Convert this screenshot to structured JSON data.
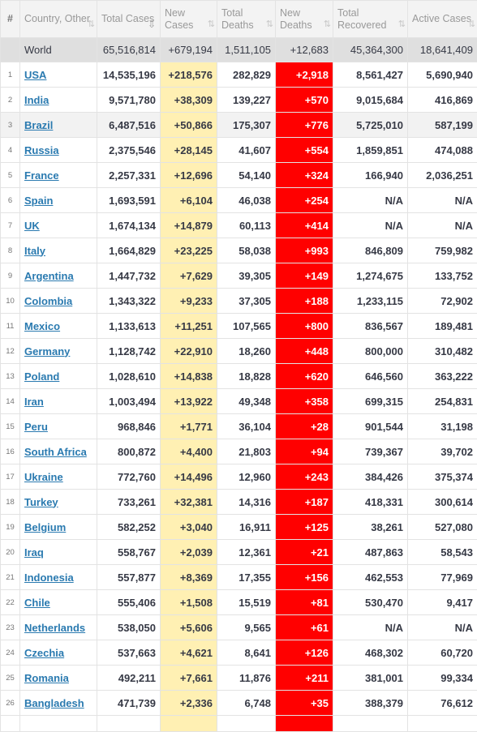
{
  "headers": [
    {
      "label": "#",
      "sort": ""
    },
    {
      "label": "Country, Other",
      "sort": "⇅"
    },
    {
      "label": "Total Cases",
      "sort": "⇩"
    },
    {
      "label": "New Cases",
      "sort": "⇅"
    },
    {
      "label": "Total Deaths",
      "sort": "⇅"
    },
    {
      "label": "New Deaths",
      "sort": "⇅"
    },
    {
      "label": "Total Recovered",
      "sort": "⇅"
    },
    {
      "label": "Active Cases",
      "sort": "⇅"
    }
  ],
  "world": {
    "country": "World",
    "total_cases": "65,516,814",
    "new_cases": "+679,194",
    "total_deaths": "1,511,105",
    "new_deaths": "+12,683",
    "total_recovered": "45,364,300",
    "active_cases": "18,641,409"
  },
  "rows": [
    {
      "num": "1",
      "country": "USA",
      "total_cases": "14,535,196",
      "new_cases": "+218,576",
      "total_deaths": "282,829",
      "new_deaths": "+2,918",
      "total_recovered": "8,561,427",
      "active_cases": "5,690,940"
    },
    {
      "num": "2",
      "country": "India",
      "total_cases": "9,571,780",
      "new_cases": "+38,309",
      "total_deaths": "139,227",
      "new_deaths": "+570",
      "total_recovered": "9,015,684",
      "active_cases": "416,869"
    },
    {
      "num": "3",
      "country": "Brazil",
      "total_cases": "6,487,516",
      "new_cases": "+50,866",
      "total_deaths": "175,307",
      "new_deaths": "+776",
      "total_recovered": "5,725,010",
      "active_cases": "587,199"
    },
    {
      "num": "4",
      "country": "Russia",
      "total_cases": "2,375,546",
      "new_cases": "+28,145",
      "total_deaths": "41,607",
      "new_deaths": "+554",
      "total_recovered": "1,859,851",
      "active_cases": "474,088"
    },
    {
      "num": "5",
      "country": "France",
      "total_cases": "2,257,331",
      "new_cases": "+12,696",
      "total_deaths": "54,140",
      "new_deaths": "+324",
      "total_recovered": "166,940",
      "active_cases": "2,036,251"
    },
    {
      "num": "6",
      "country": "Spain",
      "total_cases": "1,693,591",
      "new_cases": "+6,104",
      "total_deaths": "46,038",
      "new_deaths": "+254",
      "total_recovered": "N/A",
      "active_cases": "N/A"
    },
    {
      "num": "7",
      "country": "UK",
      "total_cases": "1,674,134",
      "new_cases": "+14,879",
      "total_deaths": "60,113",
      "new_deaths": "+414",
      "total_recovered": "N/A",
      "active_cases": "N/A"
    },
    {
      "num": "8",
      "country": "Italy",
      "total_cases": "1,664,829",
      "new_cases": "+23,225",
      "total_deaths": "58,038",
      "new_deaths": "+993",
      "total_recovered": "846,809",
      "active_cases": "759,982"
    },
    {
      "num": "9",
      "country": "Argentina",
      "total_cases": "1,447,732",
      "new_cases": "+7,629",
      "total_deaths": "39,305",
      "new_deaths": "+149",
      "total_recovered": "1,274,675",
      "active_cases": "133,752"
    },
    {
      "num": "10",
      "country": "Colombia",
      "total_cases": "1,343,322",
      "new_cases": "+9,233",
      "total_deaths": "37,305",
      "new_deaths": "+188",
      "total_recovered": "1,233,115",
      "active_cases": "72,902"
    },
    {
      "num": "11",
      "country": "Mexico",
      "total_cases": "1,133,613",
      "new_cases": "+11,251",
      "total_deaths": "107,565",
      "new_deaths": "+800",
      "total_recovered": "836,567",
      "active_cases": "189,481"
    },
    {
      "num": "12",
      "country": "Germany",
      "total_cases": "1,128,742",
      "new_cases": "+22,910",
      "total_deaths": "18,260",
      "new_deaths": "+448",
      "total_recovered": "800,000",
      "active_cases": "310,482"
    },
    {
      "num": "13",
      "country": "Poland",
      "total_cases": "1,028,610",
      "new_cases": "+14,838",
      "total_deaths": "18,828",
      "new_deaths": "+620",
      "total_recovered": "646,560",
      "active_cases": "363,222"
    },
    {
      "num": "14",
      "country": "Iran",
      "total_cases": "1,003,494",
      "new_cases": "+13,922",
      "total_deaths": "49,348",
      "new_deaths": "+358",
      "total_recovered": "699,315",
      "active_cases": "254,831"
    },
    {
      "num": "15",
      "country": "Peru",
      "total_cases": "968,846",
      "new_cases": "+1,771",
      "total_deaths": "36,104",
      "new_deaths": "+28",
      "total_recovered": "901,544",
      "active_cases": "31,198"
    },
    {
      "num": "16",
      "country": "South Africa",
      "total_cases": "800,872",
      "new_cases": "+4,400",
      "total_deaths": "21,803",
      "new_deaths": "+94",
      "total_recovered": "739,367",
      "active_cases": "39,702"
    },
    {
      "num": "17",
      "country": "Ukraine",
      "total_cases": "772,760",
      "new_cases": "+14,496",
      "total_deaths": "12,960",
      "new_deaths": "+243",
      "total_recovered": "384,426",
      "active_cases": "375,374"
    },
    {
      "num": "18",
      "country": "Turkey",
      "total_cases": "733,261",
      "new_cases": "+32,381",
      "total_deaths": "14,316",
      "new_deaths": "+187",
      "total_recovered": "418,331",
      "active_cases": "300,614"
    },
    {
      "num": "19",
      "country": "Belgium",
      "total_cases": "582,252",
      "new_cases": "+3,040",
      "total_deaths": "16,911",
      "new_deaths": "+125",
      "total_recovered": "38,261",
      "active_cases": "527,080"
    },
    {
      "num": "20",
      "country": "Iraq",
      "total_cases": "558,767",
      "new_cases": "+2,039",
      "total_deaths": "12,361",
      "new_deaths": "+21",
      "total_recovered": "487,863",
      "active_cases": "58,543"
    },
    {
      "num": "21",
      "country": "Indonesia",
      "total_cases": "557,877",
      "new_cases": "+8,369",
      "total_deaths": "17,355",
      "new_deaths": "+156",
      "total_recovered": "462,553",
      "active_cases": "77,969"
    },
    {
      "num": "22",
      "country": "Chile",
      "total_cases": "555,406",
      "new_cases": "+1,508",
      "total_deaths": "15,519",
      "new_deaths": "+81",
      "total_recovered": "530,470",
      "active_cases": "9,417"
    },
    {
      "num": "23",
      "country": "Netherlands",
      "total_cases": "538,050",
      "new_cases": "+5,606",
      "total_deaths": "9,565",
      "new_deaths": "+61",
      "total_recovered": "N/A",
      "active_cases": "N/A"
    },
    {
      "num": "24",
      "country": "Czechia",
      "total_cases": "537,663",
      "new_cases": "+4,621",
      "total_deaths": "8,641",
      "new_deaths": "+126",
      "total_recovered": "468,302",
      "active_cases": "60,720"
    },
    {
      "num": "25",
      "country": "Romania",
      "total_cases": "492,211",
      "new_cases": "+7,661",
      "total_deaths": "11,876",
      "new_deaths": "+211",
      "total_recovered": "381,001",
      "active_cases": "99,334"
    },
    {
      "num": "26",
      "country": "Bangladesh",
      "total_cases": "471,739",
      "new_cases": "+2,336",
      "total_deaths": "6,748",
      "new_deaths": "+35",
      "total_recovered": "388,379",
      "active_cases": "76,612"
    }
  ]
}
